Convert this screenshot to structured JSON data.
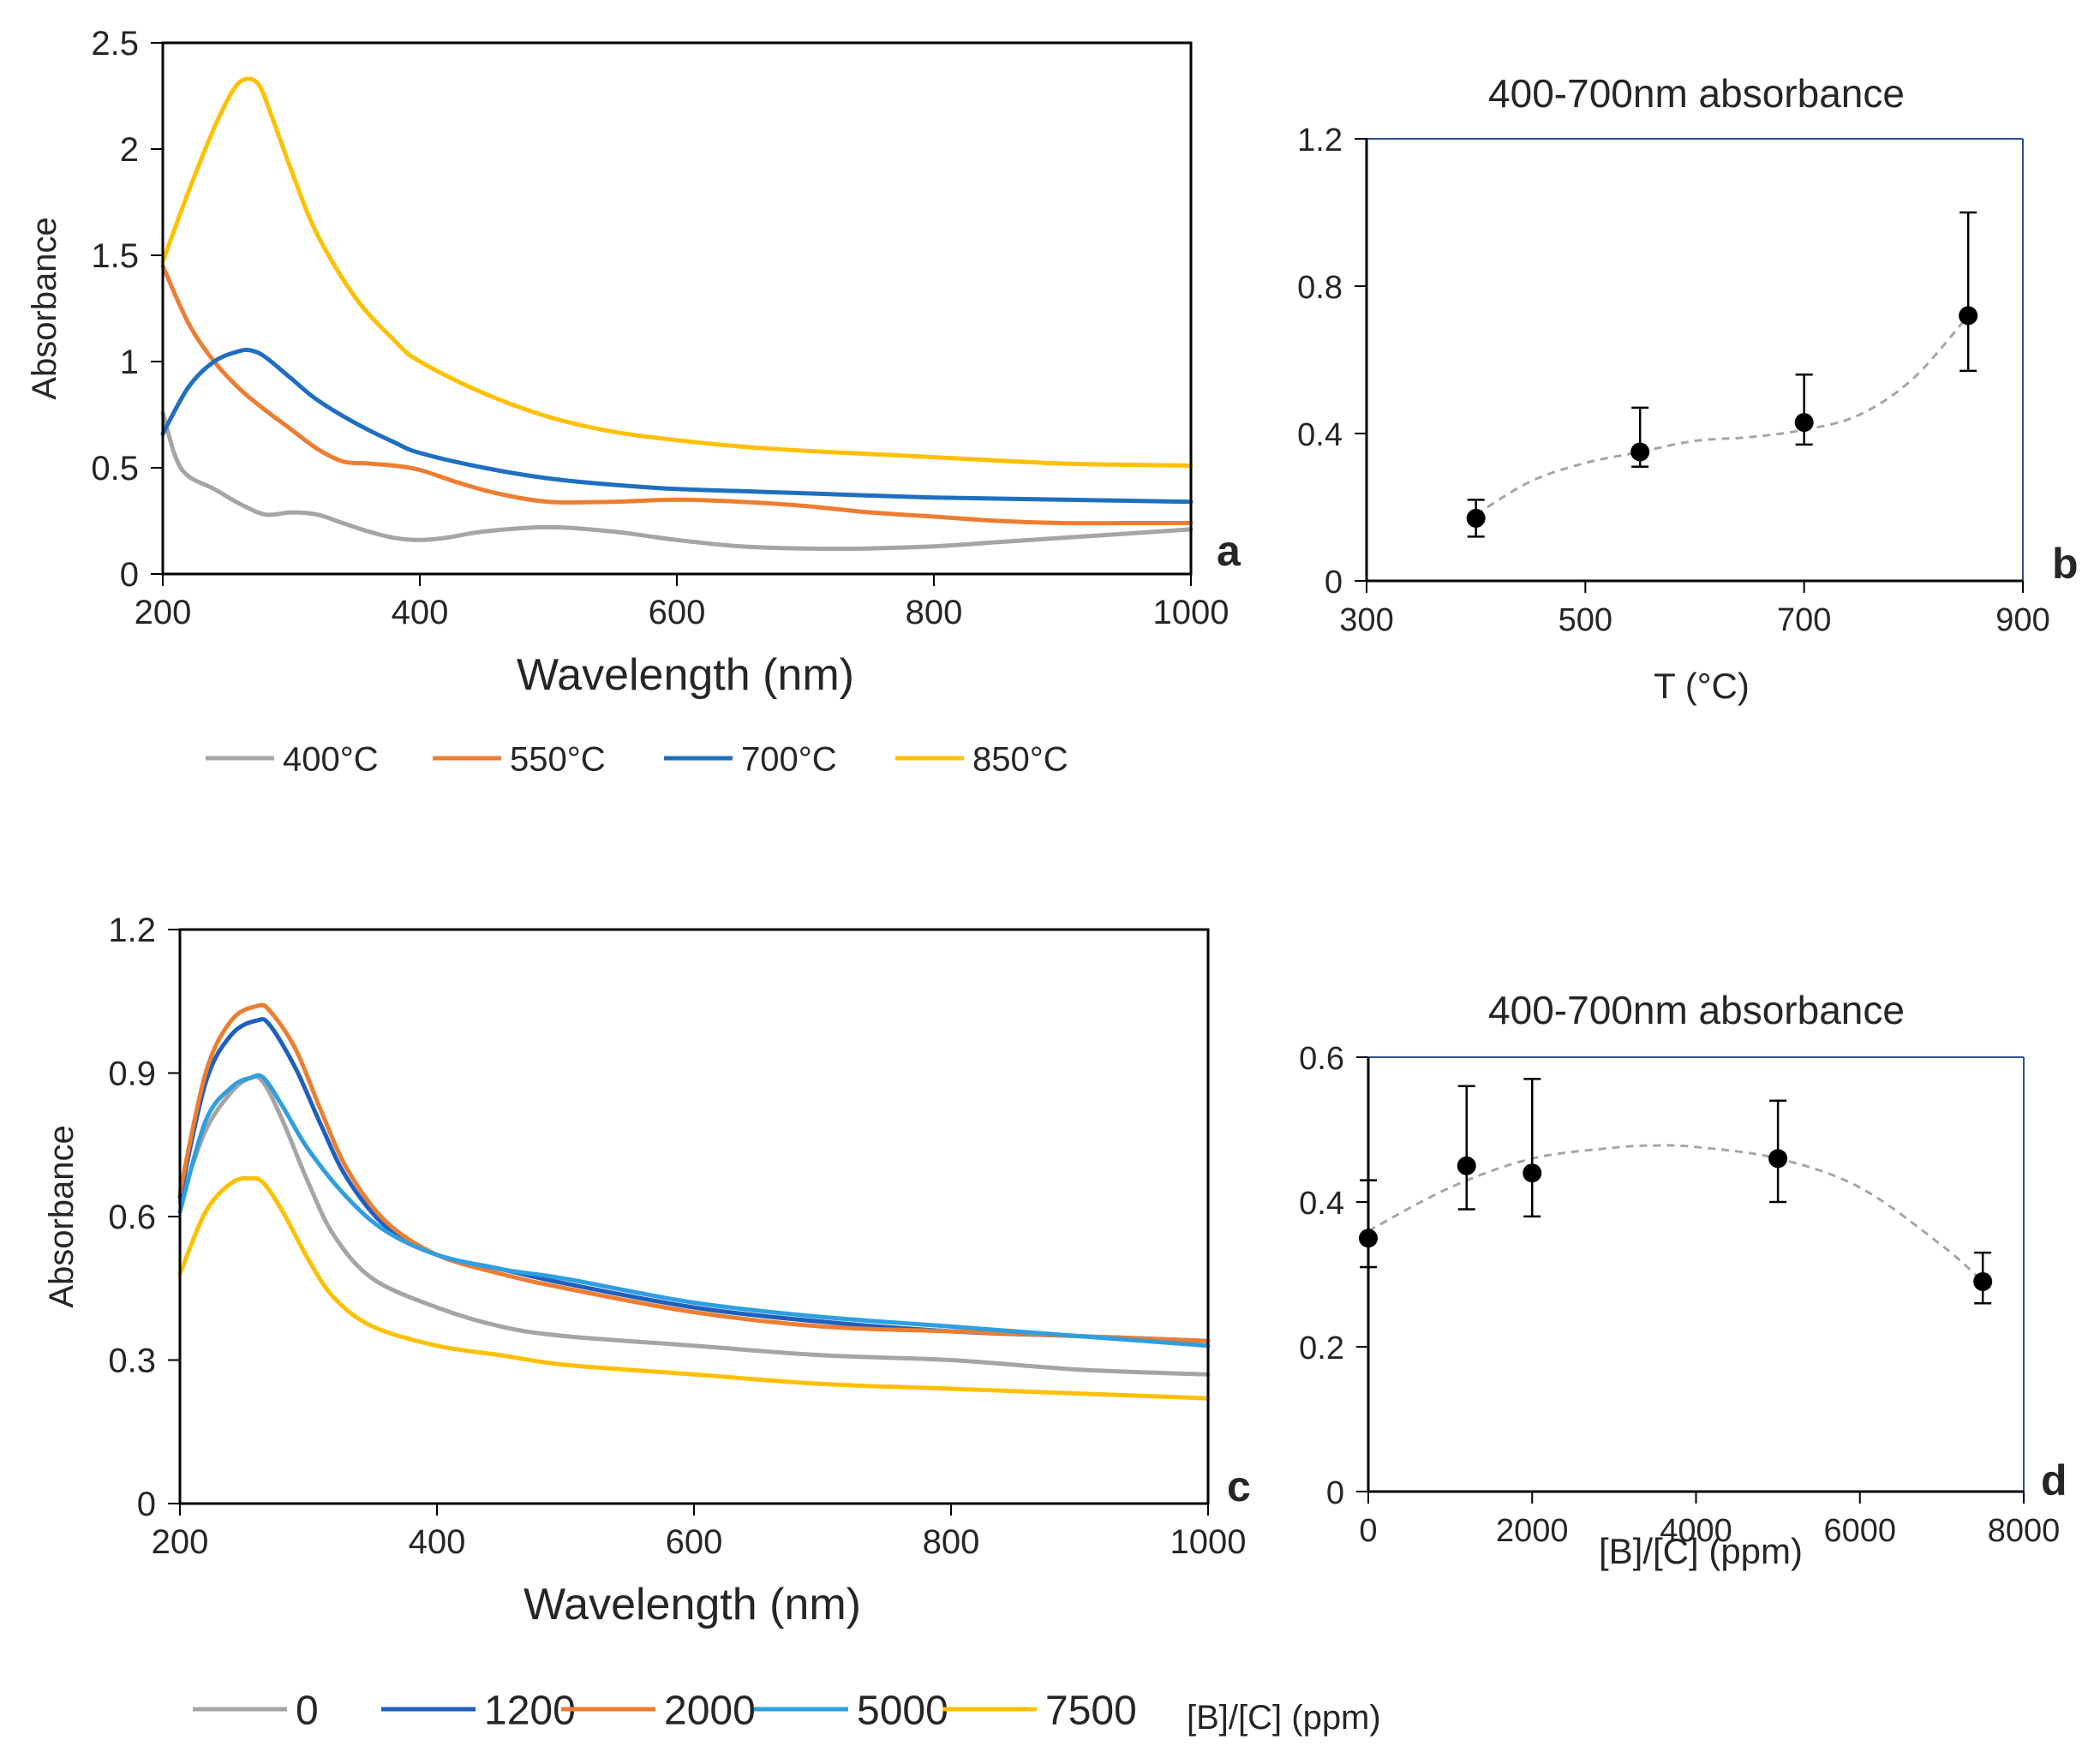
{
  "figure": {
    "panel_labels": {
      "a": "a",
      "b": "b",
      "c": "c",
      "d": "d"
    }
  },
  "chart_data": [
    {
      "panel": "a",
      "type": "line",
      "title": "",
      "xlabel": "Wavelength (nm)",
      "ylabel": "Absorbance",
      "xlim": [
        200,
        1000
      ],
      "ylim": [
        0,
        2.5
      ],
      "xticks": [
        200,
        400,
        600,
        800,
        1000
      ],
      "xtick_labels": [
        "200",
        "400",
        "600",
        "800",
        "1000"
      ],
      "yticks": [
        0,
        0.5,
        1,
        1.5,
        2,
        2.5
      ],
      "ytick_labels": [
        "0",
        "0.5",
        "1",
        "1.5",
        "2",
        "2.5"
      ],
      "legend_position": "bottom",
      "series": [
        {
          "name": "400°C",
          "color": "#a5a5a5",
          "x": [
            200,
            210,
            220,
            240,
            260,
            280,
            300,
            320,
            340,
            360,
            380,
            400,
            420,
            450,
            500,
            550,
            600,
            650,
            700,
            750,
            800,
            850,
            900,
            950,
            1000
          ],
          "y": [
            0.76,
            0.55,
            0.46,
            0.4,
            0.33,
            0.28,
            0.29,
            0.28,
            0.24,
            0.2,
            0.17,
            0.16,
            0.17,
            0.2,
            0.22,
            0.2,
            0.16,
            0.13,
            0.12,
            0.12,
            0.13,
            0.15,
            0.17,
            0.19,
            0.21
          ]
        },
        {
          "name": "550°C",
          "color": "#ed7d31",
          "x": [
            200,
            220,
            240,
            260,
            280,
            300,
            320,
            340,
            360,
            380,
            400,
            430,
            460,
            500,
            550,
            600,
            650,
            700,
            750,
            800,
            850,
            900,
            950,
            1000
          ],
          "y": [
            1.45,
            1.18,
            1.0,
            0.87,
            0.77,
            0.68,
            0.59,
            0.53,
            0.52,
            0.51,
            0.49,
            0.43,
            0.38,
            0.34,
            0.34,
            0.35,
            0.34,
            0.32,
            0.29,
            0.27,
            0.25,
            0.24,
            0.24,
            0.24
          ]
        },
        {
          "name": "700°C",
          "color": "#1f6fc1",
          "x": [
            200,
            220,
            240,
            260,
            270,
            280,
            300,
            320,
            350,
            380,
            400,
            450,
            500,
            550,
            600,
            650,
            700,
            800,
            900,
            1000
          ],
          "y": [
            0.66,
            0.88,
            1.0,
            1.05,
            1.05,
            1.02,
            0.92,
            0.82,
            0.71,
            0.62,
            0.57,
            0.5,
            0.45,
            0.42,
            0.4,
            0.39,
            0.38,
            0.36,
            0.35,
            0.34
          ]
        },
        {
          "name": "850°C",
          "color": "#ffc000",
          "x": [
            200,
            220,
            240,
            255,
            265,
            275,
            285,
            300,
            320,
            350,
            380,
            400,
            450,
            500,
            550,
            600,
            650,
            700,
            800,
            900,
            1000
          ],
          "y": [
            1.47,
            1.8,
            2.1,
            2.28,
            2.33,
            2.3,
            2.15,
            1.9,
            1.6,
            1.3,
            1.1,
            1.0,
            0.85,
            0.74,
            0.67,
            0.63,
            0.6,
            0.58,
            0.55,
            0.52,
            0.51
          ]
        }
      ]
    },
    {
      "panel": "b",
      "type": "scatter",
      "title": "400-700nm absorbance",
      "xlabel": "T (°C)",
      "ylabel": "",
      "xlim": [
        300,
        900
      ],
      "ylim": [
        0,
        1.2
      ],
      "xticks": [
        300,
        500,
        700,
        900
      ],
      "xtick_labels": [
        "300",
        "500",
        "700",
        "900"
      ],
      "yticks": [
        0,
        0.4,
        0.8,
        1.2
      ],
      "ytick_labels": [
        "0",
        "0.4",
        "0.8",
        "1.2"
      ],
      "points": [
        {
          "x": 400,
          "y": 0.17,
          "err_low": 0.12,
          "err_high": 0.22
        },
        {
          "x": 550,
          "y": 0.35,
          "err_low": 0.31,
          "err_high": 0.47
        },
        {
          "x": 700,
          "y": 0.43,
          "err_low": 0.37,
          "err_high": 0.56
        },
        {
          "x": 850,
          "y": 0.72,
          "err_low": 0.57,
          "err_high": 1.0
        }
      ],
      "trend": {
        "style": "dashed",
        "color": "#a6a6a6",
        "x": [
          400,
          450,
          500,
          550,
          600,
          650,
          700,
          750,
          800,
          850
        ],
        "y": [
          0.18,
          0.27,
          0.32,
          0.35,
          0.38,
          0.39,
          0.41,
          0.45,
          0.55,
          0.72
        ]
      }
    },
    {
      "panel": "c",
      "type": "line",
      "title": "",
      "xlabel": "Wavelength (nm)",
      "ylabel": "Absorbance",
      "xlim": [
        200,
        1000
      ],
      "ylim": [
        0,
        1.2
      ],
      "xticks": [
        200,
        400,
        600,
        800,
        1000
      ],
      "xtick_labels": [
        "200",
        "400",
        "600",
        "800",
        "1000"
      ],
      "yticks": [
        0,
        0.3,
        0.6,
        0.9,
        1.2
      ],
      "ytick_labels": [
        "0",
        "0.3",
        "0.6",
        "0.9",
        "1.2"
      ],
      "legend_position": "bottom",
      "legend_suffix": "[B]/[C] (ppm)",
      "series": [
        {
          "name": "0",
          "color": "#a5a5a5",
          "x": [
            200,
            220,
            240,
            255,
            265,
            280,
            300,
            320,
            350,
            400,
            450,
            500,
            600,
            700,
            800,
            900,
            1000
          ],
          "y": [
            0.63,
            0.78,
            0.86,
            0.89,
            0.88,
            0.8,
            0.67,
            0.56,
            0.47,
            0.41,
            0.37,
            0.35,
            0.33,
            0.31,
            0.3,
            0.28,
            0.27
          ]
        },
        {
          "name": "1200",
          "color": "#1f5fbf",
          "x": [
            200,
            220,
            240,
            260,
            270,
            290,
            310,
            330,
            360,
            400,
            450,
            500,
            600,
            700,
            800,
            900,
            1000
          ],
          "y": [
            0.64,
            0.88,
            0.98,
            1.01,
            1.0,
            0.91,
            0.79,
            0.68,
            0.58,
            0.52,
            0.49,
            0.46,
            0.41,
            0.38,
            0.36,
            0.35,
            0.34
          ]
        },
        {
          "name": "2000",
          "color": "#ed7d31",
          "x": [
            200,
            220,
            240,
            260,
            270,
            290,
            310,
            330,
            360,
            400,
            450,
            500,
            600,
            700,
            800,
            900,
            1000
          ],
          "y": [
            0.65,
            0.9,
            1.01,
            1.04,
            1.03,
            0.95,
            0.82,
            0.7,
            0.59,
            0.52,
            0.48,
            0.45,
            0.4,
            0.37,
            0.36,
            0.35,
            0.34
          ]
        },
        {
          "name": "5000",
          "color": "#2e9fe0",
          "x": [
            200,
            220,
            240,
            255,
            265,
            280,
            300,
            330,
            360,
            400,
            450,
            500,
            600,
            700,
            800,
            900,
            1000
          ],
          "y": [
            0.61,
            0.8,
            0.87,
            0.89,
            0.89,
            0.83,
            0.74,
            0.64,
            0.57,
            0.52,
            0.49,
            0.47,
            0.42,
            0.39,
            0.37,
            0.35,
            0.33
          ]
        },
        {
          "name": "7500",
          "color": "#ffc000",
          "x": [
            200,
            220,
            240,
            255,
            265,
            280,
            300,
            320,
            350,
            400,
            450,
            500,
            600,
            700,
            800,
            900,
            1000
          ],
          "y": [
            0.48,
            0.61,
            0.67,
            0.68,
            0.67,
            0.61,
            0.51,
            0.43,
            0.37,
            0.33,
            0.31,
            0.29,
            0.27,
            0.25,
            0.24,
            0.23,
            0.22
          ]
        }
      ]
    },
    {
      "panel": "d",
      "type": "scatter",
      "title": "400-700nm absorbance",
      "xlabel": "[B]/[C] (ppm)",
      "ylabel": "",
      "xlim": [
        0,
        8000
      ],
      "ylim": [
        0,
        0.6
      ],
      "xticks": [
        0,
        2000,
        4000,
        6000,
        8000
      ],
      "xtick_labels": [
        "0",
        "2000",
        "4000",
        "6000",
        "8000"
      ],
      "yticks": [
        0,
        0.2,
        0.4,
        0.6
      ],
      "ytick_labels": [
        "0",
        "0.2",
        "0.4",
        "0.6"
      ],
      "points": [
        {
          "x": 0,
          "y": 0.35,
          "err_low": 0.31,
          "err_high": 0.43
        },
        {
          "x": 1200,
          "y": 0.45,
          "err_low": 0.39,
          "err_high": 0.56
        },
        {
          "x": 2000,
          "y": 0.44,
          "err_low": 0.38,
          "err_high": 0.57
        },
        {
          "x": 5000,
          "y": 0.46,
          "err_low": 0.4,
          "err_high": 0.54
        },
        {
          "x": 7500,
          "y": 0.29,
          "err_low": 0.26,
          "err_high": 0.33
        }
      ],
      "trend": {
        "style": "dashed",
        "color": "#a6a6a6",
        "x": [
          0,
          1000,
          2000,
          3000,
          3500,
          4000,
          5000,
          6000,
          7000,
          7500
        ],
        "y": [
          0.36,
          0.42,
          0.46,
          0.475,
          0.478,
          0.476,
          0.46,
          0.42,
          0.34,
          0.29
        ]
      }
    }
  ]
}
